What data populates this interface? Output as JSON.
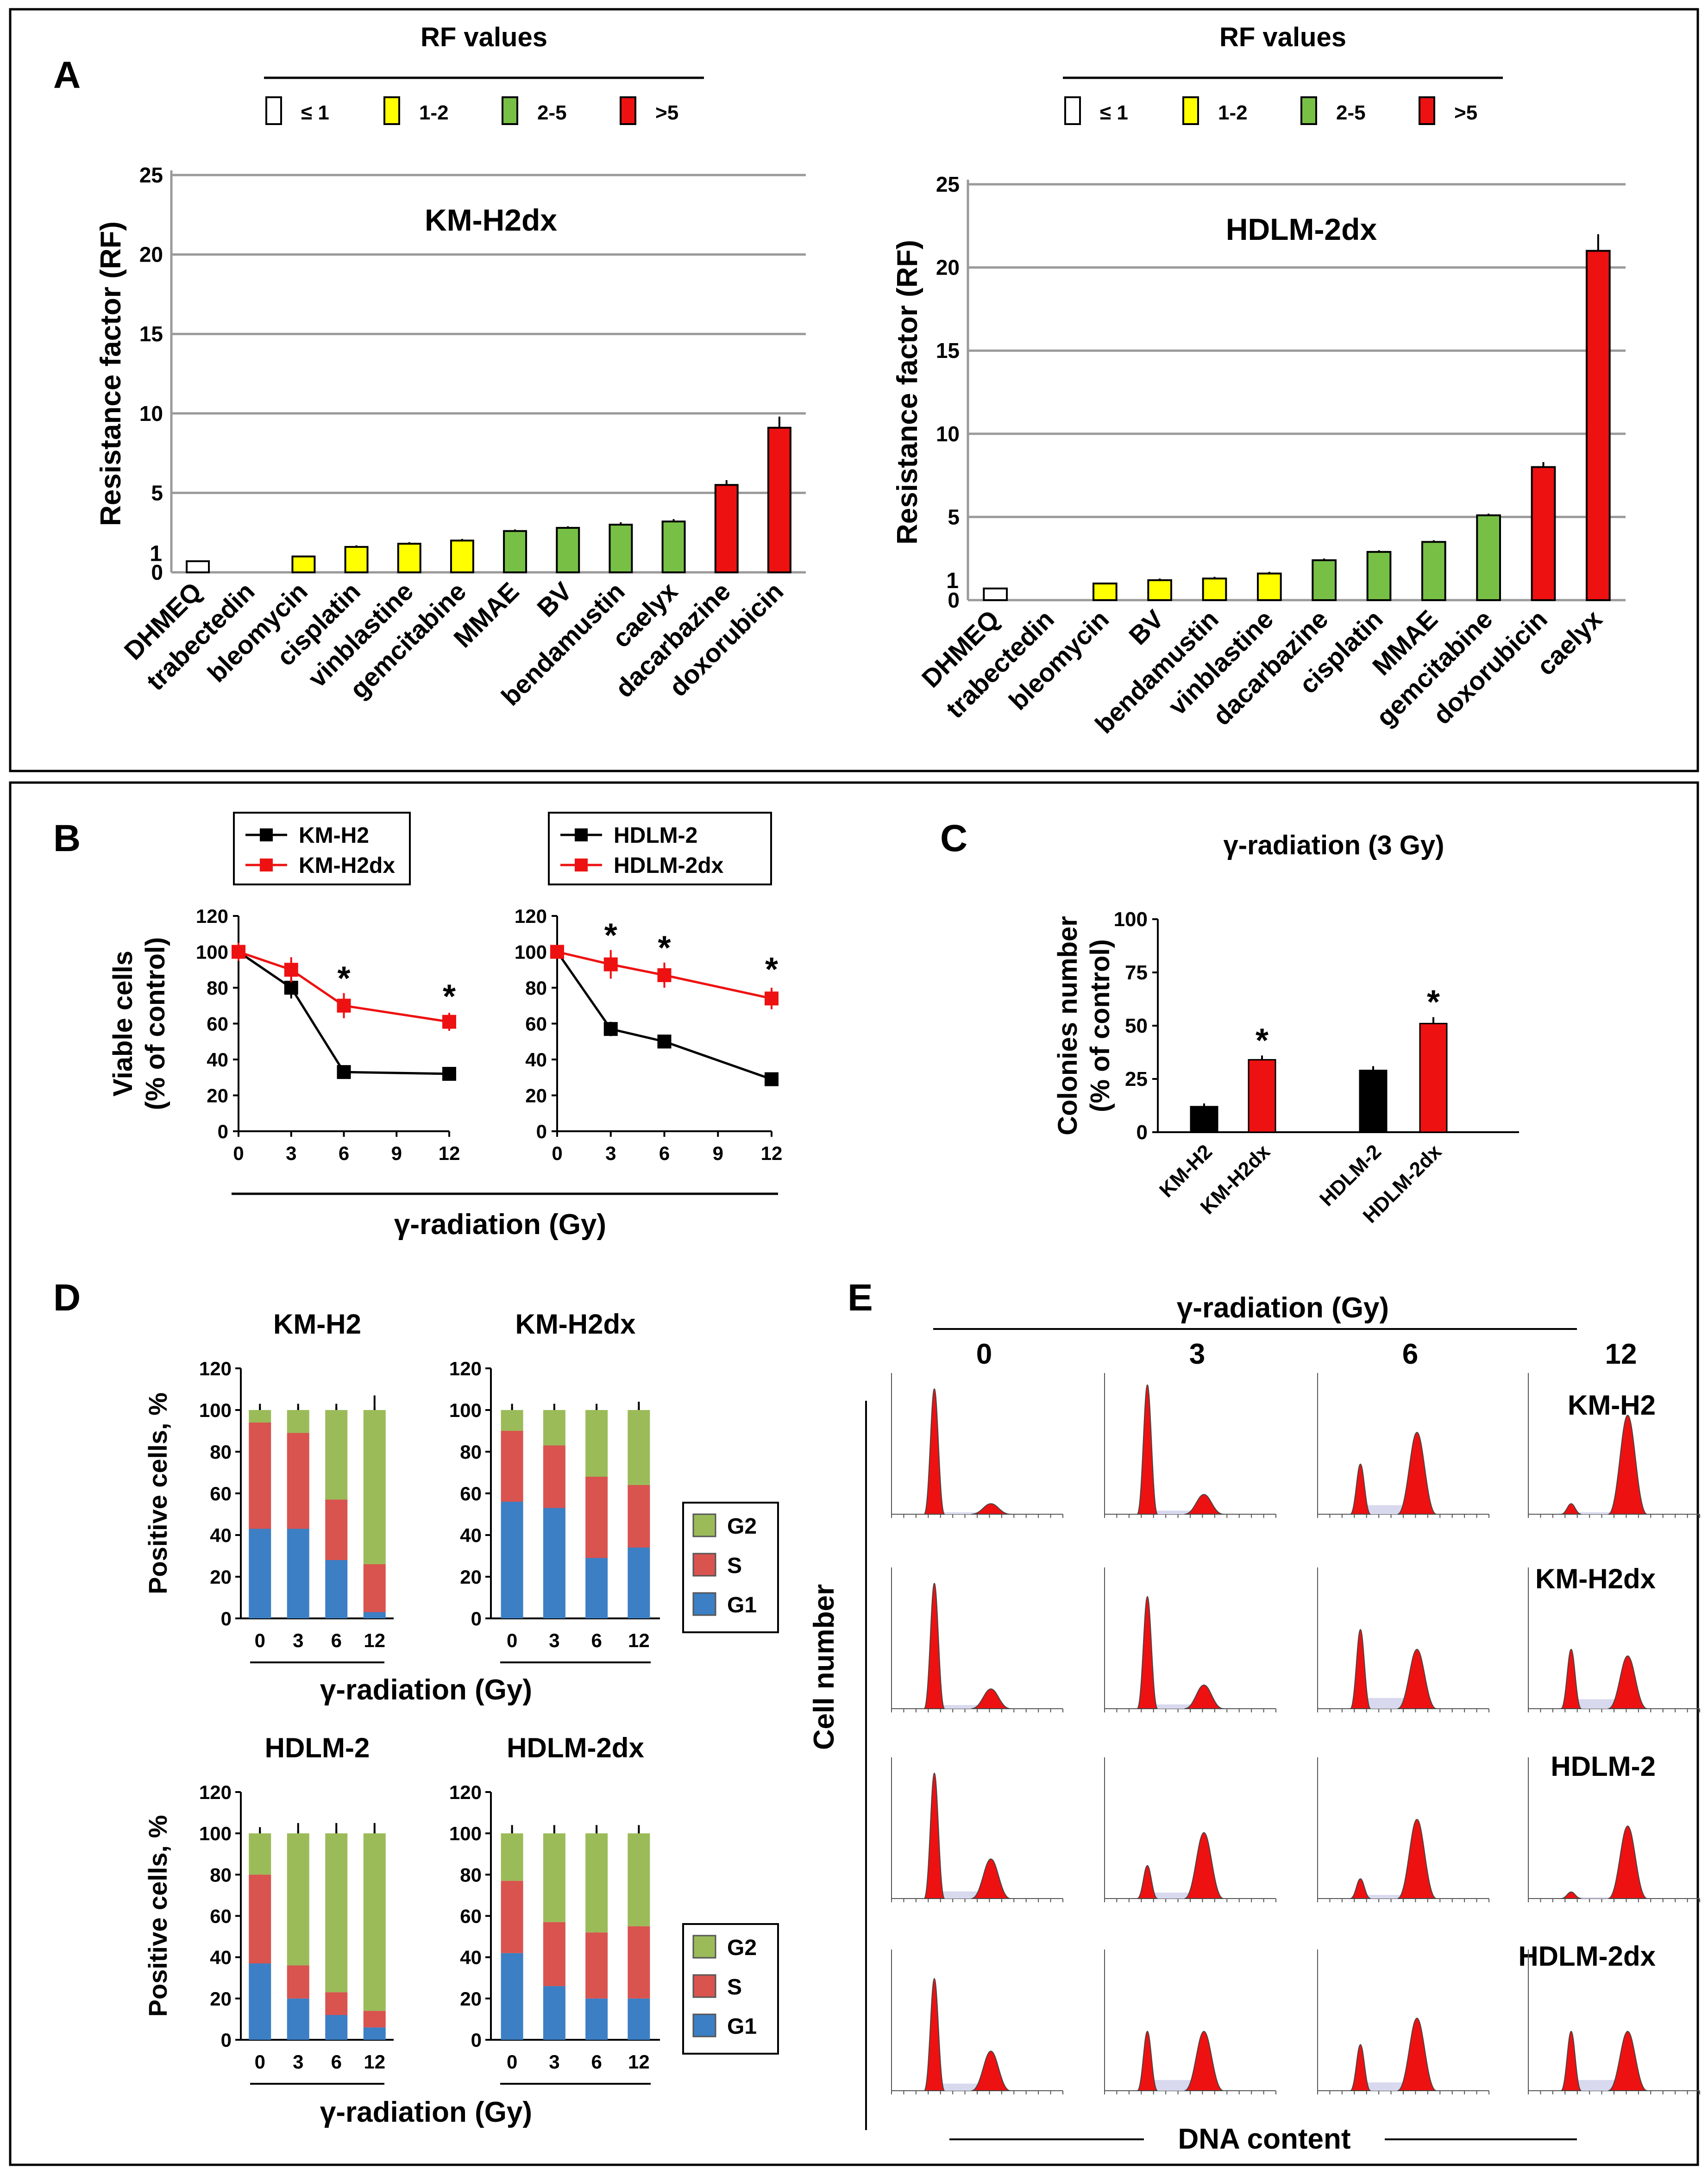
{
  "panels": {
    "A": "A",
    "B": "B",
    "C": "C",
    "D": "D",
    "E": "E"
  },
  "legend_rf": {
    "title": "RF values",
    "items": [
      {
        "label": "≤ 1",
        "color": "#ffffff"
      },
      {
        "label": "1-2",
        "color": "#ffff00"
      },
      {
        "label": "2-5",
        "color": "#77c045"
      },
      {
        "label": ">5",
        "color": "#ee1111"
      }
    ]
  },
  "colors": {
    "black": "#000000",
    "red": "#ee1111",
    "g1": "#3c7fc4",
    "s": "#d9534f",
    "g2": "#9bbb59",
    "grid": "#9a9a9a",
    "hist_fill": "#d8d8ee"
  },
  "chart_data": [
    {
      "id": "A-left",
      "type": "bar",
      "title": "KM-H2dx",
      "ylabel": "Resistance factor  (RF)",
      "ylim": [
        0,
        25
      ],
      "yticks": [
        "0",
        "5",
        "10",
        "15",
        "20",
        "25"
      ],
      "ref_line_label": "1",
      "categories": [
        "DHMEQ",
        "trabectedin",
        "bleomycin",
        "cisplatin",
        "vinblastine",
        "gemcitabine",
        "MMAE",
        "BV",
        "bendamustin",
        "caelyx",
        "dacarbazine",
        "doxorubicin"
      ],
      "values": [
        0.7,
        0,
        1.0,
        1.6,
        1.8,
        2.0,
        2.6,
        2.8,
        3.0,
        3.2,
        5.5,
        9.1
      ],
      "errors": [
        0.05,
        0,
        0.05,
        0.1,
        0.1,
        0.1,
        0.1,
        0.1,
        0.15,
        0.15,
        0.3,
        0.7
      ],
      "colors": [
        "#ffffff",
        "#ffffff",
        "#ffff00",
        "#ffff00",
        "#ffff00",
        "#ffff00",
        "#77c045",
        "#77c045",
        "#77c045",
        "#77c045",
        "#ee1111",
        "#ee1111"
      ]
    },
    {
      "id": "A-right",
      "type": "bar",
      "title": "HDLM-2dx",
      "ylabel": "Resistance factor  (RF)",
      "ylim": [
        0,
        25
      ],
      "yticks": [
        "0",
        "5",
        "10",
        "15",
        "20",
        "25"
      ],
      "ref_line_label": "1",
      "categories": [
        "DHMEQ",
        "trabectedin",
        "bleomycin",
        "BV",
        "bendamustin",
        "vinblastine",
        "dacarbazine",
        "cisplatin",
        "MMAE",
        "gemcitabine",
        "doxorubicin",
        "caelyx"
      ],
      "values": [
        0.7,
        0,
        1.0,
        1.2,
        1.3,
        1.6,
        2.4,
        2.9,
        3.5,
        5.1,
        8.0,
        21.0
      ],
      "errors": [
        0.05,
        0,
        0.05,
        0.1,
        0.1,
        0.1,
        0.1,
        0.1,
        0.1,
        0.1,
        0.3,
        1.0
      ],
      "colors": [
        "#ffffff",
        "#ffffff",
        "#ffff00",
        "#ffff00",
        "#ffff00",
        "#ffff00",
        "#77c045",
        "#77c045",
        "#77c045",
        "#77c045",
        "#ee1111",
        "#ee1111"
      ]
    },
    {
      "id": "B-left",
      "type": "line",
      "ylabel": [
        "Viable cells",
        "(% of control)"
      ],
      "xlim": [
        0,
        12
      ],
      "ylim": [
        0,
        120
      ],
      "xticks": [
        0,
        3,
        6,
        9,
        12
      ],
      "yticks": [
        0,
        20,
        40,
        60,
        80,
        100,
        120
      ],
      "series": [
        {
          "name": "KM-H2",
          "color": "#000000",
          "x": [
            0,
            3,
            6,
            12
          ],
          "y": [
            100,
            80,
            33,
            32
          ],
          "err": [
            5,
            6,
            3,
            3
          ]
        },
        {
          "name": "KM-H2dx",
          "color": "#ee1111",
          "x": [
            0,
            3,
            6,
            12
          ],
          "y": [
            100,
            90,
            70,
            61
          ],
          "err": [
            5,
            7,
            7,
            5
          ]
        }
      ],
      "asterisks": [
        {
          "x": 6,
          "y": 84
        },
        {
          "x": 12,
          "y": 74
        }
      ]
    },
    {
      "id": "B-right",
      "type": "line",
      "xlim": [
        0,
        12
      ],
      "ylim": [
        0,
        120
      ],
      "xticks": [
        0,
        3,
        6,
        9,
        12
      ],
      "yticks": [
        0,
        20,
        40,
        60,
        80,
        100,
        120
      ],
      "series": [
        {
          "name": "HDLM-2",
          "color": "#000000",
          "x": [
            0,
            3,
            6,
            12
          ],
          "y": [
            100,
            57,
            50,
            29
          ],
          "err": [
            3,
            4,
            3,
            3
          ]
        },
        {
          "name": "HDLM-2dx",
          "color": "#ee1111",
          "x": [
            0,
            3,
            6,
            12
          ],
          "y": [
            100,
            93,
            87,
            74
          ],
          "err": [
            3,
            8,
            7,
            6
          ]
        }
      ],
      "asterisks": [
        {
          "x": 3,
          "y": 108
        },
        {
          "x": 6,
          "y": 101
        },
        {
          "x": 12,
          "y": 89
        }
      ]
    },
    {
      "id": "C",
      "type": "bar",
      "title": "γ-radiation (3 Gy)",
      "ylabel": [
        "Colonies number",
        "(% of control)"
      ],
      "ylim": [
        0,
        100
      ],
      "yticks": [
        0,
        25,
        50,
        75,
        100
      ],
      "categories": [
        "KM-H2",
        "KM-H2dx",
        "HDLM-2",
        "HDLM-2dx"
      ],
      "values": [
        12,
        34,
        29,
        51
      ],
      "errors": [
        1.5,
        2,
        2,
        3
      ],
      "colors": [
        "#000000",
        "#ee1111",
        "#000000",
        "#ee1111"
      ],
      "asterisks": [
        1,
        3
      ]
    },
    {
      "id": "D-KM-H2",
      "type": "bar",
      "title": "KM-H2",
      "title_color": "#000000",
      "ylabel": "Positive cells, %",
      "ylim": [
        0,
        120
      ],
      "yticks": [
        0,
        20,
        40,
        60,
        80,
        100,
        120
      ],
      "categories": [
        "0",
        "3",
        "6",
        "12"
      ],
      "series": [
        {
          "name": "G1",
          "color": "#3c7fc4",
          "values": [
            43,
            43,
            28,
            3
          ]
        },
        {
          "name": "S",
          "color": "#d9534f",
          "values": [
            51,
            46,
            29,
            23
          ]
        },
        {
          "name": "G2",
          "color": "#9bbb59",
          "values": [
            6,
            11,
            43,
            74
          ]
        }
      ],
      "errors": [
        1,
        1,
        1,
        5
      ]
    },
    {
      "id": "D-KM-H2dx",
      "type": "bar",
      "title": "KM-H2dx",
      "title_color": "#ee1111",
      "ylim": [
        0,
        120
      ],
      "yticks": [
        0,
        20,
        40,
        60,
        80,
        100,
        120
      ],
      "categories": [
        "0",
        "3",
        "6",
        "12"
      ],
      "series": [
        {
          "name": "G1",
          "color": "#3c7fc4",
          "values": [
            56,
            53,
            29,
            34
          ]
        },
        {
          "name": "S",
          "color": "#d9534f",
          "values": [
            34,
            30,
            39,
            30
          ]
        },
        {
          "name": "G2",
          "color": "#9bbb59",
          "values": [
            10,
            17,
            32,
            36
          ]
        }
      ],
      "errors": [
        1,
        1,
        1,
        2
      ]
    },
    {
      "id": "D-HDLM-2",
      "type": "bar",
      "title": "HDLM-2",
      "title_color": "#000000",
      "ylabel": "Positive cells, %",
      "ylim": [
        0,
        120
      ],
      "yticks": [
        0,
        20,
        40,
        60,
        80,
        100,
        120
      ],
      "categories": [
        "0",
        "3",
        "6",
        "12"
      ],
      "series": [
        {
          "name": "G1",
          "color": "#3c7fc4",
          "values": [
            37,
            20,
            12,
            6
          ]
        },
        {
          "name": "S",
          "color": "#d9534f",
          "values": [
            43,
            16,
            11,
            8
          ]
        },
        {
          "name": "G2",
          "color": "#9bbb59",
          "values": [
            20,
            64,
            77,
            86
          ]
        }
      ],
      "errors": [
        1,
        3,
        3,
        3
      ]
    },
    {
      "id": "D-HDLM-2dx",
      "type": "bar",
      "title": "HDLM-2dx",
      "title_color": "#ee1111",
      "ylim": [
        0,
        120
      ],
      "yticks": [
        0,
        20,
        40,
        60,
        80,
        100,
        120
      ],
      "categories": [
        "0",
        "3",
        "6",
        "12"
      ],
      "series": [
        {
          "name": "G1",
          "color": "#3c7fc4",
          "values": [
            42,
            26,
            20,
            20
          ]
        },
        {
          "name": "S",
          "color": "#d9534f",
          "values": [
            35,
            31,
            32,
            35
          ]
        },
        {
          "name": "G2",
          "color": "#9bbb59",
          "values": [
            23,
            43,
            48,
            45
          ]
        }
      ],
      "errors": [
        2,
        2,
        2,
        2
      ]
    }
  ],
  "B_xlabel": "γ-radiation (Gy)",
  "D_xlabel": "γ-radiation (Gy)",
  "D_legend": [
    "G2",
    "S",
    "G1"
  ],
  "E": {
    "title": "γ-radiation (Gy)",
    "doses": [
      "0",
      "3",
      "6",
      "12"
    ],
    "rows": [
      {
        "name": "KM-H2",
        "color": "#000000"
      },
      {
        "name": "KM-H2dx",
        "color": "#ee1111"
      },
      {
        "name": "HDLM-2",
        "color": "#000000"
      },
      {
        "name": "HDLM-2dx",
        "color": "#ee1111"
      }
    ],
    "ylabel": "Cell number",
    "xlabel": "DNA content",
    "peaks": [
      [
        [
          0.95,
          0.08
        ],
        [
          0.98,
          0.15
        ],
        [
          0.38,
          0.62
        ],
        [
          0.08,
          0.75
        ]
      ],
      [
        [
          0.95,
          0.15
        ],
        [
          0.85,
          0.18
        ],
        [
          0.6,
          0.45
        ],
        [
          0.45,
          0.4
        ]
      ],
      [
        [
          0.95,
          0.3
        ],
        [
          0.25,
          0.5
        ],
        [
          0.15,
          0.6
        ],
        [
          0.05,
          0.55
        ]
      ],
      [
        [
          0.85,
          0.3
        ],
        [
          0.45,
          0.45
        ],
        [
          0.35,
          0.55
        ],
        [
          0.45,
          0.45
        ]
      ]
    ]
  }
}
